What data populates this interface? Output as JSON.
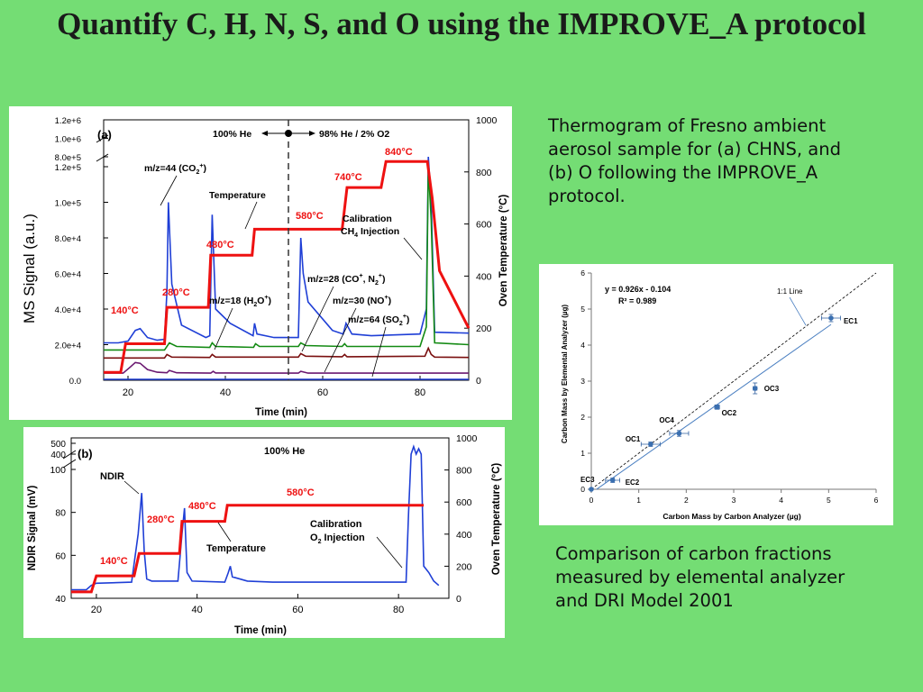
{
  "title": "Quantify C, H, N, S, and O using the IMPROVE_A protocol",
  "caption_top": "Thermogram of Fresno ambient aerosol sample for (a) CHNS, and (b) O following the IMPROVE_A protocol.",
  "caption_bottom": "Comparison of carbon fractions measured by elemental analyzer and DRI Model 2001",
  "chart_data": [
    {
      "type": "line",
      "panel_label": "(a)",
      "xlabel": "Time (min)",
      "ylabel": "MS Signal (a.u.)",
      "y2label": "Oven Temperature (°C)",
      "xlim": [
        15,
        90
      ],
      "x_ticks": [
        "20",
        "40",
        "60",
        "80"
      ],
      "y_ticks_lower": [
        "0.0",
        "2.0e+4",
        "4.0e+4",
        "6.0e+4",
        "8.0e+4",
        "1.0e+5",
        "1.2e+5"
      ],
      "y_ticks_upper": [
        "8.0e+5",
        "1.0e+6",
        "1.2e+6"
      ],
      "y2_ticks": [
        "0",
        "200",
        "400",
        "600",
        "800",
        "1000"
      ],
      "gas_labels": [
        "100% He",
        "98% He / 2% O2"
      ],
      "gas_switch_x": 55,
      "annotations": [
        "m/z=44 (CO2+)",
        "Temperature",
        "Calibration CH4 Injection",
        "m/z=18 (H2O+)",
        "m/z=28 (CO+, N2+)",
        "m/z=30 (NO+)",
        "m/z=64 (SO2+)"
      ],
      "temperature_steps": [
        {
          "label": "140°C",
          "start": 18.5,
          "end": 27.5,
          "value": 140
        },
        {
          "label": "280°C",
          "start": 28,
          "end": 36.5,
          "value": 280
        },
        {
          "label": "480°C",
          "start": 37,
          "end": 45.5,
          "value": 480
        },
        {
          "label": "580°C",
          "start": 46,
          "end": 64,
          "value": 580
        },
        {
          "label": "740°C",
          "start": 65,
          "end": 72,
          "value": 740
        },
        {
          "label": "840°C",
          "start": 73,
          "end": 81.5,
          "value": 840
        }
      ],
      "series": [
        {
          "name": "m/z=44 (CO2+)",
          "color": "#1f3fd6",
          "x": [
            15,
            18,
            20,
            21.5,
            22.5,
            24,
            26,
            27.5,
            28,
            28.3,
            29,
            31,
            36,
            36.8,
            37.3,
            38,
            41,
            45.7,
            46,
            46.5,
            50,
            55,
            55.5,
            56,
            57,
            62,
            64.2,
            64.8,
            66,
            70,
            80,
            81.3,
            81.7,
            82.3,
            83,
            90
          ],
          "y": [
            21000,
            21000,
            22000,
            28000,
            29000,
            24000,
            22500,
            23000,
            50000,
            100000,
            54000,
            31000,
            24000,
            25000,
            93000,
            40000,
            32000,
            25000,
            32000,
            26000,
            24000,
            24000,
            80000,
            60000,
            44000,
            28000,
            26000,
            32000,
            26000,
            25000,
            26000,
            40000,
            140000,
            100000,
            27000,
            26500
          ]
        },
        {
          "name": "m/z=18 (H2O+)",
          "color": "#138a13",
          "x": [
            15,
            20,
            27.5,
            28,
            28.5,
            30,
            36.8,
            37.3,
            38,
            45.8,
            46.2,
            47,
            55,
            55.5,
            56.5,
            64,
            64.5,
            65,
            80,
            81.3,
            81.7,
            82.3,
            83,
            90
          ],
          "y": [
            17000,
            17000,
            17000,
            19000,
            21000,
            19000,
            18500,
            21000,
            19000,
            18500,
            20500,
            19000,
            19000,
            21000,
            19500,
            19000,
            20500,
            19000,
            19000,
            30000,
            120000,
            90000,
            21000,
            20000
          ]
        },
        {
          "name": "m/z=28 (CO+, N2+)",
          "color": "#7a0f0f",
          "x": [
            15,
            20,
            27.5,
            28,
            29,
            36.8,
            37.3,
            38,
            46,
            55,
            55.5,
            56.5,
            64,
            64.5,
            65,
            81,
            81.7,
            82.3,
            83,
            90
          ],
          "y": [
            12500,
            12500,
            12500,
            14500,
            13000,
            12800,
            14500,
            13000,
            13000,
            13000,
            15000,
            13500,
            13200,
            14500,
            13200,
            13500,
            18000,
            14500,
            13000,
            12800
          ]
        },
        {
          "name": "m/z=64 (SO2+)",
          "color": "#6a1870",
          "x": [
            15,
            19,
            20.5,
            21.5,
            22.5,
            24,
            26,
            28,
            28.5,
            30,
            37,
            37.5,
            38,
            46,
            55,
            55.5,
            57,
            90
          ],
          "y": [
            4000,
            4000,
            7500,
            10000,
            9500,
            6000,
            4500,
            4200,
            5500,
            4200,
            4000,
            5000,
            4100,
            4000,
            4000,
            5000,
            4000,
            4000
          ]
        },
        {
          "name": "m/z=30 (NO+)",
          "color": "#1f3fd6",
          "x": [
            15,
            90
          ],
          "y": [
            500,
            500
          ]
        },
        {
          "name": "Temperature",
          "color": "#ee1111",
          "x": [
            15,
            18.5,
            19.5,
            27.5,
            28,
            28.5,
            36.5,
            37,
            37.5,
            45.5,
            46,
            46.5,
            64,
            65,
            72,
            73,
            81.5,
            82.5,
            84,
            90
          ],
          "y": [
            30,
            30,
            140,
            140,
            280,
            280,
            280,
            480,
            480,
            480,
            580,
            580,
            580,
            740,
            740,
            840,
            840,
            700,
            420,
            200
          ]
        }
      ]
    },
    {
      "type": "line",
      "panel_label": "(b)",
      "xlabel": "Time (min)",
      "ylabel": "NDIR Signal (mV)",
      "y2label": "Oven Temperature (°C)",
      "xlim": [
        15,
        90
      ],
      "x_ticks": [
        "20",
        "40",
        "60",
        "80"
      ],
      "y_ticks_lower": [
        "40",
        "60",
        "80",
        "100"
      ],
      "y_ticks_upper": [
        "400",
        "500"
      ],
      "y2_ticks": [
        "0",
        "200",
        "400",
        "600",
        "800",
        "1000"
      ],
      "gas_labels": [
        "100% He"
      ],
      "annotations": [
        "NDIR",
        "Temperature",
        "Calibration O2 Injection"
      ],
      "temperature_steps": [
        {
          "label": "140°C",
          "value": 140
        },
        {
          "label": "280°C",
          "value": 280
        },
        {
          "label": "480°C",
          "value": 480
        },
        {
          "label": "580°C",
          "value": 580
        }
      ],
      "series": [
        {
          "name": "NDIR",
          "color": "#1f3fd6",
          "x": [
            15,
            18,
            19,
            20,
            27,
            28.3,
            29,
            29.5,
            30,
            31,
            36.2,
            37,
            37.5,
            38,
            39,
            45.5,
            46.2,
            46.6,
            47,
            50,
            55,
            81.5,
            82,
            82.5,
            83,
            83.5,
            84,
            84.5,
            85,
            86,
            87,
            88
          ],
          "y": [
            44,
            44,
            46,
            47,
            47.5,
            70,
            89,
            62,
            49,
            48,
            48,
            70,
            82,
            52,
            48,
            47.5,
            52,
            55,
            50,
            48,
            47.5,
            47.5,
            80,
            200,
            470,
            400,
            450,
            120,
            55,
            52,
            48,
            46
          ],
          "upper_range": [
            420,
            520
          ]
        },
        {
          "name": "Temperature",
          "color": "#ee1111",
          "x": [
            15,
            19,
            20,
            27.5,
            28.5,
            36.5,
            37,
            45.5,
            46,
            85
          ],
          "y": [
            40,
            40,
            140,
            140,
            280,
            280,
            480,
            480,
            580,
            580
          ]
        }
      ]
    },
    {
      "type": "scatter",
      "xlabel": "Carbon Mass by Carbon Analyzer (µg)",
      "ylabel": "Carbon Mass by Elemental Analyzer (µg)",
      "xlim": [
        0,
        6
      ],
      "ylim": [
        0,
        6
      ],
      "x_ticks": [
        "0",
        "1",
        "2",
        "3",
        "4",
        "5",
        "6"
      ],
      "y_ticks": [
        "0",
        "1",
        "2",
        "3",
        "4",
        "5",
        "6"
      ],
      "fit": {
        "slope": 0.926,
        "intercept": -0.104,
        "equation": "y = 0.926x - 0.104",
        "r2": "R² = 0.989"
      },
      "reference_line": "1:1 Line",
      "points": [
        {
          "label": "EC3",
          "x": 0.0,
          "y": 0.0,
          "xerr": 0.0,
          "yerr": 0.0
        },
        {
          "label": "EC2",
          "x": 0.45,
          "y": 0.25,
          "xerr": 0.15,
          "yerr": 0.06
        },
        {
          "label": "OC1",
          "x": 1.25,
          "y": 1.25,
          "xerr": 0.2,
          "yerr": 0.06
        },
        {
          "label": "OC4",
          "x": 1.85,
          "y": 1.55,
          "xerr": 0.2,
          "yerr": 0.08
        },
        {
          "label": "OC2",
          "x": 2.65,
          "y": 2.28,
          "xerr": 0.05,
          "yerr": 0.06
        },
        {
          "label": "OC3",
          "x": 3.45,
          "y": 2.8,
          "xerr": 0.04,
          "yerr": 0.15
        },
        {
          "label": "EC1",
          "x": 5.05,
          "y": 4.75,
          "xerr": 0.2,
          "yerr": 0.1
        }
      ]
    }
  ]
}
